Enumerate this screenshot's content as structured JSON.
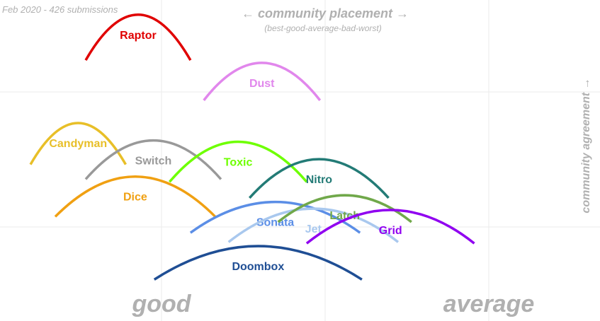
{
  "chart_data": {
    "type": "line",
    "subtitle_note": "Feb 2020 - 426 submissions",
    "xlabel": "← community placement →",
    "xlabel_sub": "(best-good-average-bad-worst)",
    "ylabel": "community agreement →",
    "x_category_labels": [
      "good",
      "average"
    ],
    "xlim": [
      0.5,
      3.65
    ],
    "ylim": [
      0,
      2.4
    ],
    "grid": true,
    "series": [
      {
        "name": "Raptor",
        "color": "#e00000",
        "x0": 0.95,
        "x1": 1.5,
        "y0": 1.95,
        "y1": 2.29
      },
      {
        "name": "Dust",
        "color": "#e187ec",
        "x0": 1.57,
        "x1": 2.18,
        "y0": 1.65,
        "y1": 1.93
      },
      {
        "name": "Candyman",
        "color": "#e8bf28",
        "x0": 0.66,
        "x1": 1.16,
        "y0": 1.17,
        "y1": 1.48
      },
      {
        "name": "Switch",
        "color": "#999999",
        "x0": 0.95,
        "x1": 1.66,
        "y0": 1.06,
        "y1": 1.35
      },
      {
        "name": "Toxic",
        "color": "#6eff00",
        "x0": 1.39,
        "x1": 2.11,
        "y0": 1.04,
        "y1": 1.34
      },
      {
        "name": "Nitro",
        "color": "#237b76",
        "x0": 1.81,
        "x1": 2.54,
        "y0": 0.92,
        "y1": 1.21
      },
      {
        "name": "Dice",
        "color": "#f0a012",
        "x0": 0.79,
        "x1": 1.63,
        "y0": 0.78,
        "y1": 1.08
      },
      {
        "name": "Sonata",
        "color": "#5b8ee6",
        "x0": 1.5,
        "x1": 2.39,
        "y0": 0.66,
        "y1": 0.89
      },
      {
        "name": "Jet",
        "color": "#a9c8ee",
        "x0": 1.7,
        "x1": 2.59,
        "y0": 0.59,
        "y1": 0.84
      },
      {
        "name": "Latch",
        "color": "#70a84a",
        "x0": 1.96,
        "x1": 2.66,
        "y0": 0.74,
        "y1": 0.94
      },
      {
        "name": "Grid",
        "color": "#9000f0",
        "x0": 2.11,
        "x1": 2.99,
        "y0": 0.58,
        "y1": 0.83
      },
      {
        "name": "Doombox",
        "color": "#1f4e94",
        "x0": 1.31,
        "x1": 2.4,
        "y0": 0.31,
        "y1": 0.56
      }
    ]
  }
}
